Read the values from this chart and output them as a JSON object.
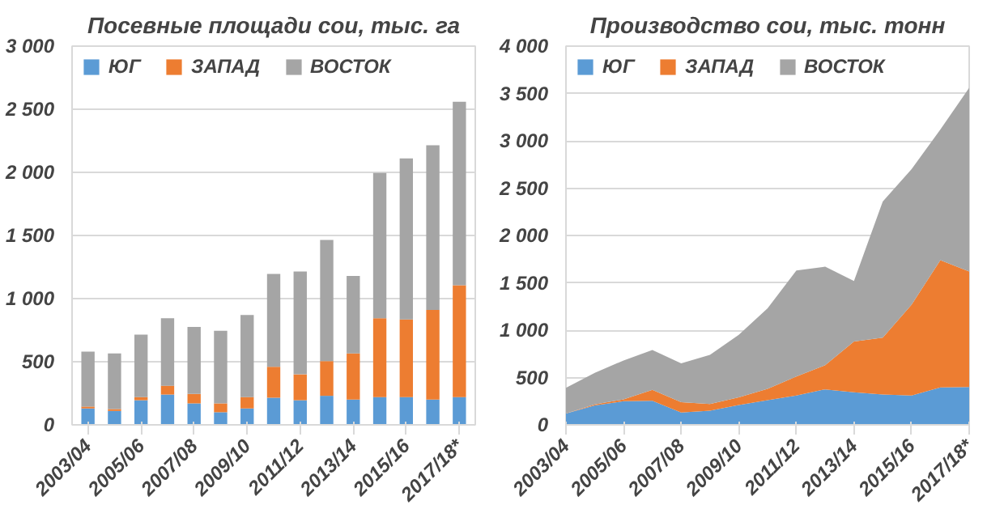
{
  "chart_data": [
    {
      "type": "bar",
      "stacked": true,
      "title": "Посевные площади сои, тыс. га",
      "categories": [
        "2003/04",
        null,
        "2005/06",
        null,
        "2007/08",
        null,
        "2009/10",
        null,
        "2011/12",
        null,
        "2013/14",
        null,
        "2015/16",
        null,
        "2017/18*"
      ],
      "series": [
        {
          "name": "ЮГ",
          "color": "#5b9bd5",
          "values": [
            130,
            110,
            195,
            240,
            170,
            100,
            130,
            215,
            195,
            230,
            200,
            220,
            220,
            200,
            220
          ]
        },
        {
          "name": "ЗАПАД",
          "color": "#ed7d31",
          "values": [
            15,
            15,
            25,
            70,
            75,
            70,
            90,
            245,
            205,
            275,
            365,
            625,
            615,
            710,
            885
          ]
        },
        {
          "name": "ВОСТОК",
          "color": "#a5a5a5",
          "values": [
            435,
            440,
            495,
            535,
            530,
            575,
            650,
            735,
            815,
            960,
            615,
            1150,
            1275,
            1305,
            1455
          ]
        }
      ],
      "ylim": [
        0,
        3000
      ],
      "yticks": [
        0,
        {
          "value": 500,
          "label": "500"
        },
        {
          "value": 1000,
          "label": "1 000"
        },
        {
          "value": 1500,
          "label": "1 500"
        },
        {
          "value": 2000,
          "label": "2 000"
        },
        {
          "value": 2500,
          "label": "2 500"
        },
        {
          "value": 3000,
          "label": "3 000"
        }
      ],
      "grid": "y",
      "legend": "top left"
    },
    {
      "type": "area",
      "stacked": true,
      "title": "Производство сои, тыс. тонн",
      "categories": [
        "2003/04",
        null,
        "2005/06",
        null,
        "2007/08",
        null,
        "2009/10",
        null,
        "2011/12",
        null,
        "2013/14",
        null,
        "2015/16",
        null,
        "2017/18*"
      ],
      "series": [
        {
          "name": "ЮГ",
          "color": "#5b9bd5",
          "values": [
            120,
            205,
            250,
            255,
            130,
            150,
            210,
            260,
            310,
            375,
            345,
            320,
            310,
            395,
            400
          ]
        },
        {
          "name": "ЗАПАД",
          "color": "#ed7d31",
          "values": [
            0,
            10,
            20,
            115,
            110,
            70,
            80,
            120,
            200,
            255,
            535,
            600,
            960,
            1345,
            1220
          ]
        },
        {
          "name": "ВОСТОК",
          "color": "#a5a5a5",
          "values": [
            270,
            335,
            410,
            420,
            410,
            520,
            660,
            850,
            1120,
            1040,
            640,
            1440,
            1430,
            1380,
            1940
          ]
        }
      ],
      "ylim": [
        0,
        4000
      ],
      "yticks": [
        0,
        {
          "value": 500,
          "label": "500"
        },
        {
          "value": 1000,
          "label": "1 000"
        },
        {
          "value": 1500,
          "label": "1 500"
        },
        {
          "value": 2000,
          "label": "2 000"
        },
        {
          "value": 2500,
          "label": "2 500"
        },
        {
          "value": 3000,
          "label": "3 000"
        },
        {
          "value": 3500,
          "label": "3 500"
        },
        {
          "value": 4000,
          "label": "4 000"
        }
      ],
      "grid": "y",
      "legend": "top left"
    }
  ]
}
